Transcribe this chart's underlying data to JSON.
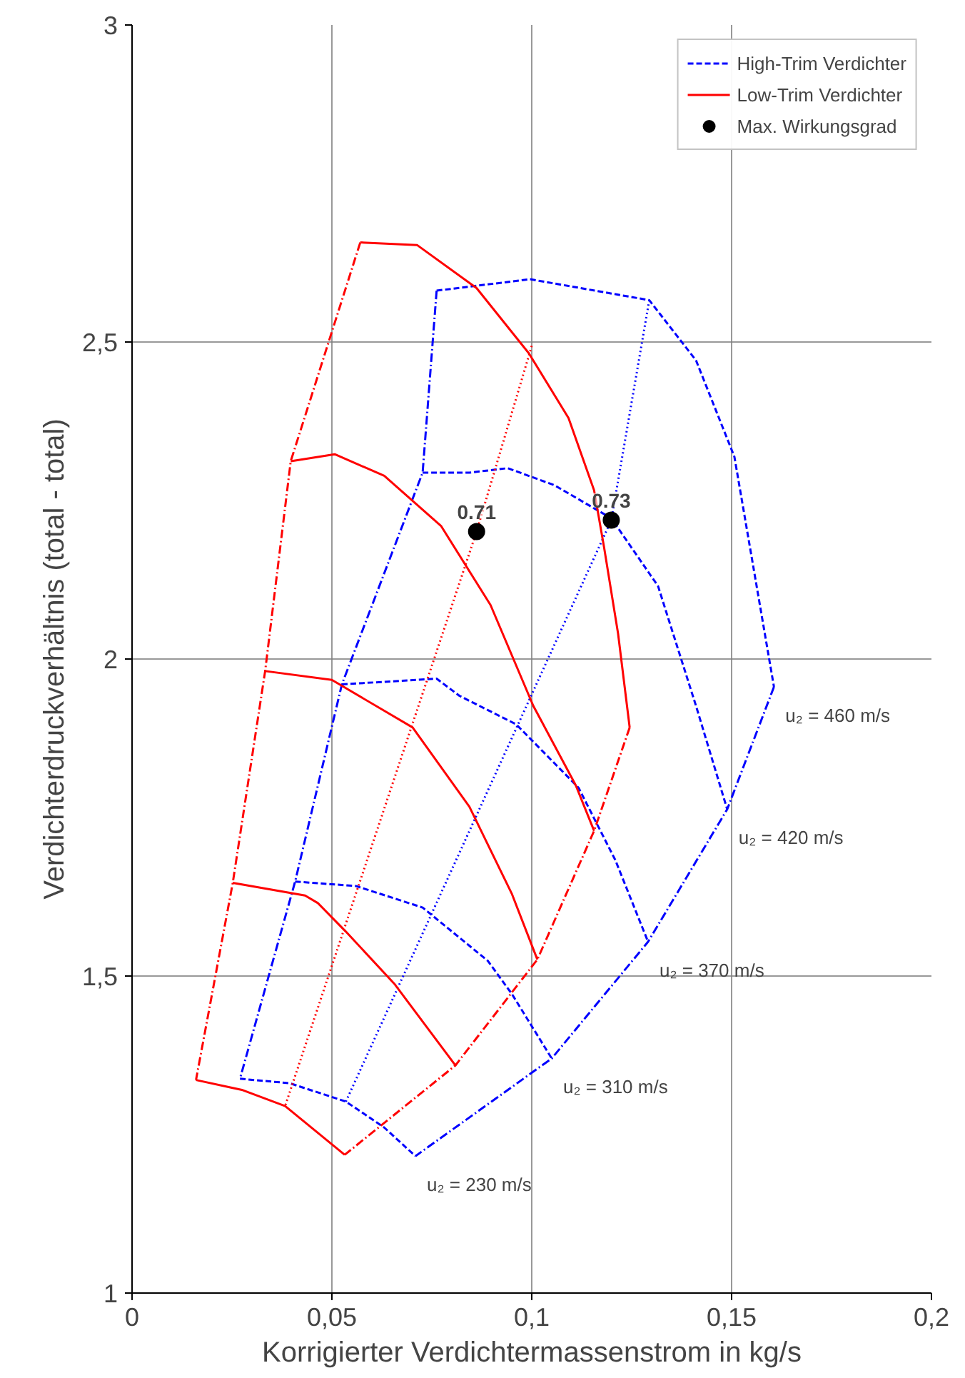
{
  "chart_data": {
    "type": "line",
    "xlabel": "Korrigierter Verdichtermassenstrom in kg/s",
    "ylabel": "Verdichterdruckverhältnis (total - total)",
    "xlim": [
      0,
      0.2
    ],
    "ylim": [
      1,
      3
    ],
    "xticks": [
      0,
      {
        "value": 0.05,
        "label": "0,05"
      },
      {
        "value": 0.1,
        "label": "0,1"
      },
      {
        "value": 0.15,
        "label": "0,15"
      },
      {
        "value": 0.2,
        "label": "0,2"
      }
    ],
    "yticks": [
      1,
      {
        "value": 1.5,
        "label": "1,5"
      },
      2,
      {
        "value": 2.5,
        "label": "2,5"
      },
      3
    ],
    "grid": true,
    "legend": "top right",
    "series": [
      {
        "name": "High-Trim Verdichter",
        "color": "#0000ff",
        "line_style": "dashed",
        "x": [
          0.0762,
          0.0996,
          0.1294,
          0.1411,
          0.1507,
          0.1606
        ],
        "values": [
          2.581,
          2.599,
          2.566,
          2.471,
          2.319,
          1.956
        ]
      },
      {
        "color": "#0000ff",
        "line_style": "dashed",
        "x": [
          0.0727,
          0.0844,
          0.094,
          0.1057,
          0.1199,
          0.1316,
          0.1411,
          0.1489
        ],
        "values": [
          2.294,
          2.294,
          2.301,
          2.274,
          2.222,
          2.115,
          1.926,
          1.763
        ]
      },
      {
        "color": "#0000ff",
        "line_style": "dashed",
        "x": [
          0.0525,
          0.0762,
          0.0819,
          0.0961,
          0.1117,
          0.1209,
          0.1291
        ],
        "values": [
          1.96,
          1.969,
          1.942,
          1.897,
          1.797,
          1.683,
          1.554
        ]
      },
      {
        "color": "#0000ff",
        "line_style": "dashed",
        "x": [
          0.0408,
          0.056,
          0.0727,
          0.089,
          0.095,
          0.105
        ],
        "values": [
          1.649,
          1.642,
          1.608,
          1.524,
          1.472,
          1.37
        ]
      },
      {
        "color": "#0000ff",
        "line_style": "dashed",
        "x": [
          0.027,
          0.0394,
          0.0535,
          0.0631,
          0.0709
        ],
        "values": [
          1.338,
          1.331,
          1.302,
          1.261,
          1.216
        ]
      },
      {
        "color": "#0000ff",
        "line_style": "dashdot",
        "x": [
          0.0762,
          0.0727,
          0.0525,
          0.0408,
          0.027
        ],
        "values": [
          2.581,
          2.294,
          1.96,
          1.649,
          1.338
        ]
      },
      {
        "color": "#0000ff",
        "line_style": "dashdot",
        "x": [
          0.1606,
          0.1489,
          0.1291,
          0.105,
          0.0709
        ],
        "values": [
          1.956,
          1.763,
          1.554,
          1.37,
          1.216
        ]
      },
      {
        "color": "#0000ff",
        "line_style": "dotted",
        "x": [
          0.1294,
          0.1199,
          0.0535
        ],
        "values": [
          2.566,
          2.219,
          1.302
        ]
      },
      {
        "name": "Low-Trim Verdichter",
        "color": "#ff0000",
        "line_style": "solid",
        "x": [
          0.0571,
          0.0713,
          0.0862,
          0.0993,
          0.1092,
          0.1156,
          0.1181,
          0.1216,
          0.1245
        ],
        "values": [
          2.657,
          2.653,
          2.585,
          2.482,
          2.38,
          2.266,
          2.176,
          2.04,
          1.892
        ]
      },
      {
        "color": "#ff0000",
        "line_style": "solid",
        "x": [
          0.0397,
          0.0507,
          0.0631,
          0.0773,
          0.0897,
          0.1004,
          0.111,
          0.1156
        ],
        "values": [
          2.312,
          2.323,
          2.289,
          2.21,
          2.085,
          1.926,
          1.801,
          1.729
        ]
      },
      {
        "color": "#ff0000",
        "line_style": "solid",
        "x": [
          0.0333,
          0.05,
          0.0702,
          0.0844,
          0.095,
          0.1014
        ],
        "values": [
          1.981,
          1.967,
          1.892,
          1.767,
          1.63,
          1.526
        ]
      },
      {
        "color": "#ff0000",
        "line_style": "solid",
        "x": [
          0.0252,
          0.0433,
          0.0465,
          0.0535,
          0.0656,
          0.0809
        ],
        "values": [
          1.647,
          1.627,
          1.615,
          1.57,
          1.488,
          1.359
        ]
      },
      {
        "color": "#ff0000",
        "line_style": "solid",
        "x": [
          0.016,
          0.0277,
          0.0383,
          0.0532
        ],
        "values": [
          1.336,
          1.32,
          1.295,
          1.218
        ]
      },
      {
        "color": "#ff0000",
        "line_style": "dashdot",
        "x": [
          0.0571,
          0.0397,
          0.0333,
          0.0252,
          0.016
        ],
        "values": [
          2.657,
          2.312,
          1.981,
          1.647,
          1.336
        ]
      },
      {
        "color": "#ff0000",
        "line_style": "dashdot",
        "x": [
          0.1245,
          0.1156,
          0.1014,
          0.0809,
          0.0532
        ],
        "values": [
          1.892,
          1.729,
          1.526,
          1.359,
          1.218
        ]
      },
      {
        "color": "#ff0000",
        "line_style": "dotted",
        "x": [
          0.1,
          0.0862,
          0.0383
        ],
        "values": [
          2.494,
          2.201,
          1.295
        ]
      },
      {
        "name": "Max. Wirkungsgrad",
        "type": "scatter",
        "marker": "circle",
        "color": "#000000",
        "x": [
          0.0862,
          0.1199
        ],
        "values": [
          2.201,
          2.219
        ]
      }
    ],
    "annotations": [
      {
        "text": "0.71",
        "x": 0.0862,
        "y": 2.201
      },
      {
        "text": "0.73",
        "x": 0.1199,
        "y": 2.219
      },
      "u₂ = 460 m/s",
      "u₂ = 420 m/s",
      "u₂ = 370 m/s",
      "u₂ = 310 m/s",
      "u₂ = 230 m/s"
    ]
  }
}
